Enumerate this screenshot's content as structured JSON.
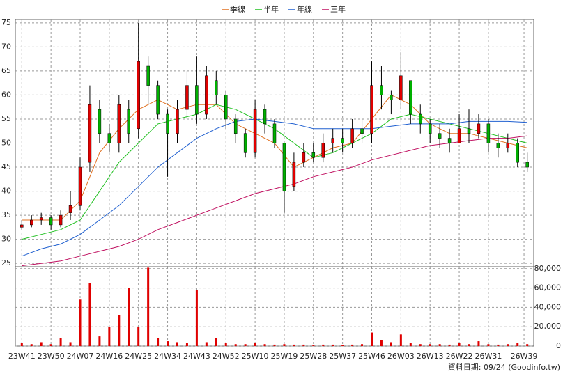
{
  "chart_data": {
    "type": "candlestick",
    "footer": "資料日期: 09/24  (Goodinfo.tw)",
    "ylim": [
      24.3,
      75.7
    ],
    "yticks": [
      25,
      30,
      35,
      40,
      45,
      50,
      55,
      60,
      65,
      70,
      75
    ],
    "grid": true,
    "up_color": "#e00000",
    "down_color": "#00b000",
    "xlim": [
      -2,
      158
    ],
    "xticks": [
      {
        "value": 0,
        "label": "23W41"
      },
      {
        "value": 9,
        "label": "23W50"
      },
      {
        "value": 18,
        "label": "24W07"
      },
      {
        "value": 27,
        "label": "24W16"
      },
      {
        "value": 36,
        "label": "24W25"
      },
      {
        "value": 45,
        "label": "24W34"
      },
      {
        "value": 54,
        "label": "24W43"
      },
      {
        "value": 63,
        "label": "24W52"
      },
      {
        "value": 72,
        "label": "25W10"
      },
      {
        "value": 81,
        "label": "25W19"
      },
      {
        "value": 90,
        "label": "25W28"
      },
      {
        "value": 99,
        "label": "25W37"
      },
      {
        "value": 108,
        "label": "25W46"
      },
      {
        "value": 117,
        "label": "26W03"
      },
      {
        "value": 126,
        "label": "26W13"
      },
      {
        "value": 135,
        "label": "26W22"
      },
      {
        "value": 144,
        "label": "26W31"
      },
      {
        "value": 155,
        "label": "26W39"
      }
    ],
    "candles": {
      "x": [
        0,
        3,
        6,
        9,
        12,
        15,
        18,
        21,
        24,
        27,
        30,
        33,
        36,
        39,
        42,
        45,
        48,
        51,
        54,
        57,
        60,
        63,
        66,
        69,
        72,
        75,
        78,
        81,
        84,
        87,
        90,
        93,
        96,
        99,
        102,
        105,
        108,
        111,
        114,
        117,
        120,
        123,
        126,
        129,
        132,
        135,
        138,
        141,
        144,
        147,
        150,
        153,
        156
      ],
      "open": [
        32.5,
        33,
        34,
        34.5,
        33,
        35.5,
        37,
        46,
        57,
        52,
        50,
        57,
        53,
        66,
        62,
        56,
        52,
        57,
        62,
        56,
        63,
        60,
        55,
        52,
        48,
        57,
        54,
        50,
        41,
        46,
        48,
        47,
        50,
        51,
        50,
        53,
        52,
        62,
        60,
        59,
        63,
        56,
        54,
        52,
        51,
        50,
        53,
        52,
        54,
        50,
        49,
        50,
        46
      ],
      "high": [
        34,
        35,
        35.5,
        35,
        36,
        40,
        47,
        62,
        59,
        54,
        60,
        59,
        75,
        68,
        63,
        57,
        59,
        65,
        68,
        66,
        65,
        61,
        56,
        53,
        59,
        58,
        55,
        50,
        48,
        50,
        50,
        52,
        53,
        53,
        55,
        55,
        67,
        66,
        61,
        69,
        60,
        58,
        55,
        54,
        53,
        56,
        57,
        56,
        55,
        52,
        52,
        51,
        48
      ],
      "low": [
        32,
        32.5,
        33,
        32,
        32.5,
        34,
        36,
        44,
        50,
        48,
        48,
        50,
        51,
        58,
        55,
        43,
        50,
        55,
        54,
        55,
        58,
        53,
        50,
        47,
        47,
        52,
        49,
        35.5,
        40,
        45,
        46,
        46,
        48,
        48,
        49,
        50,
        50,
        57,
        56,
        57,
        54,
        52,
        50,
        49,
        48,
        50,
        50,
        51,
        48,
        47,
        48,
        45,
        44
      ],
      "close": [
        33,
        34,
        34.5,
        33,
        35,
        37,
        45,
        58,
        52,
        50,
        58,
        52,
        67,
        62,
        56,
        52,
        57,
        62,
        56,
        64,
        60,
        55,
        52,
        48,
        57,
        54,
        50,
        40,
        46,
        48,
        47,
        50,
        51,
        50,
        53,
        52,
        62,
        60,
        59,
        64,
        56,
        54,
        52,
        51,
        50,
        53,
        52,
        54,
        50,
        49,
        50,
        46,
        45
      ]
    },
    "ma_x": [
      0,
      6,
      12,
      18,
      24,
      30,
      36,
      42,
      48,
      54,
      60,
      66,
      72,
      78,
      84,
      90,
      96,
      102,
      108,
      114,
      120,
      126,
      132,
      138,
      144,
      150,
      156
    ],
    "series": [
      {
        "name": "季線",
        "color": "#e07020",
        "values": [
          34,
          34,
          34,
          38,
          48,
          53,
          57,
          59,
          57,
          58,
          58,
          54,
          52,
          50,
          45,
          47,
          49,
          50,
          55,
          60,
          58,
          54,
          52,
          52,
          51,
          50,
          49
        ]
      },
      {
        "name": "半年",
        "color": "#20c020",
        "values": [
          30,
          31,
          32,
          34,
          40,
          46,
          50,
          54,
          55,
          56,
          58,
          57,
          55,
          53,
          50,
          47,
          48,
          50,
          52,
          55,
          56,
          55,
          54,
          53,
          52,
          51,
          50
        ]
      },
      {
        "name": "年線",
        "color": "#2060d0",
        "values": [
          26.5,
          28,
          29,
          31,
          34,
          37,
          41,
          45,
          48,
          51,
          53,
          54.5,
          55,
          54.5,
          54,
          53,
          53,
          53,
          53,
          53.5,
          54,
          54,
          54,
          54.5,
          54.5,
          54.5,
          54.3
        ]
      },
      {
        "name": "三年",
        "color": "#c01060",
        "values": [
          24.5,
          25,
          25.5,
          26.5,
          27.5,
          28.5,
          30,
          32,
          33.5,
          35,
          36.5,
          38,
          39.5,
          40.5,
          41.5,
          43,
          44,
          45,
          46.5,
          47.5,
          48.5,
          49.5,
          50,
          50.5,
          51,
          51,
          51.5
        ]
      }
    ],
    "volume": {
      "color": "#e00000",
      "ylim": [
        0,
        82000
      ],
      "yticks": [
        0,
        {
          "value": 20000,
          "label": "20,000"
        },
        {
          "value": 40000,
          "label": "40,000"
        },
        {
          "value": 60000,
          "label": "60,000"
        },
        {
          "value": 80000,
          "label": "80,000"
        }
      ],
      "values": [
        3000,
        2000,
        4000,
        2000,
        8000,
        4000,
        48000,
        65000,
        10000,
        20000,
        32000,
        60000,
        20000,
        81000,
        8000,
        5000,
        4000,
        3000,
        58000,
        4000,
        8000,
        3000,
        2000,
        2000,
        3000,
        2000,
        1500,
        2000,
        1500,
        1500,
        1000,
        1500,
        1500,
        1000,
        1500,
        2000,
        14000,
        6000,
        4000,
        12000,
        3000,
        2000,
        2000,
        2000,
        1500,
        3000,
        2000,
        5000,
        2000,
        1500,
        2000,
        3000,
        2000
      ]
    }
  }
}
